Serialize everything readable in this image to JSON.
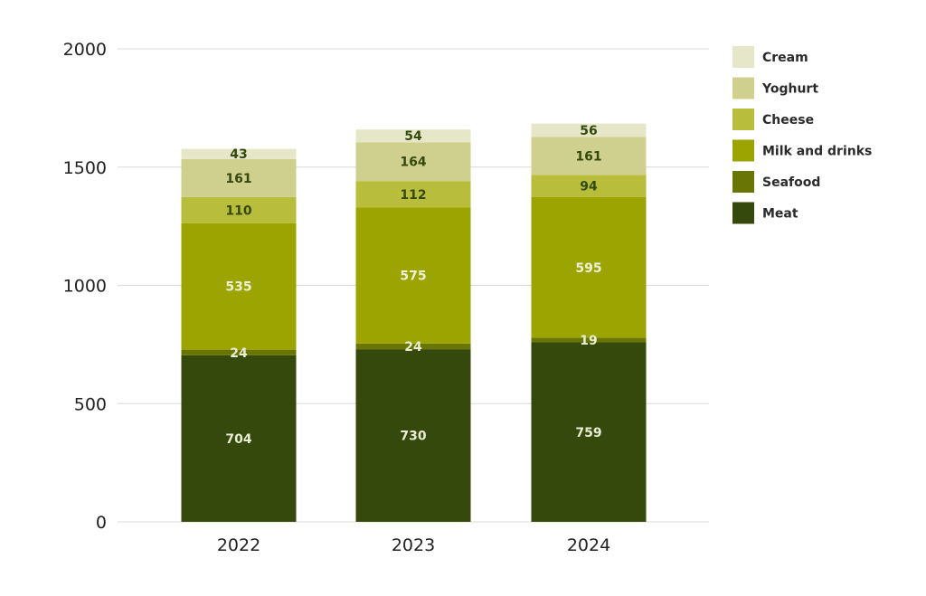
{
  "chart_data": {
    "type": "bar",
    "stacked": true,
    "title": "",
    "xlabel": "",
    "ylabel": "",
    "categories": [
      "2022",
      "2023",
      "2024"
    ],
    "ylim": [
      0,
      2000
    ],
    "yticks": [
      0,
      500,
      1000,
      1500,
      2000
    ],
    "grid": true,
    "legend_position": "top-right",
    "series": [
      {
        "name": "Meat",
        "color": "#35490d",
        "label_color": "#e8ecd3",
        "values": [
          704,
          730,
          759
        ]
      },
      {
        "name": "Seafood",
        "color": "#697605",
        "label_color": "#e8ecd3",
        "values": [
          24,
          24,
          19
        ]
      },
      {
        "name": "Milk and drinks",
        "color": "#9ca401",
        "label_color": "#eef0d6",
        "values": [
          535,
          575,
          595
        ]
      },
      {
        "name": "Cheese",
        "color": "#b8bd3c",
        "label_color": "#35490d",
        "values": [
          110,
          112,
          94
        ]
      },
      {
        "name": "Yoghurt",
        "color": "#d0d08e",
        "label_color": "#35490d",
        "values": [
          161,
          164,
          161
        ]
      },
      {
        "name": "Cream",
        "color": "#e6e7c9",
        "label_color": "#35490d",
        "values": [
          43,
          54,
          56
        ]
      }
    ]
  }
}
